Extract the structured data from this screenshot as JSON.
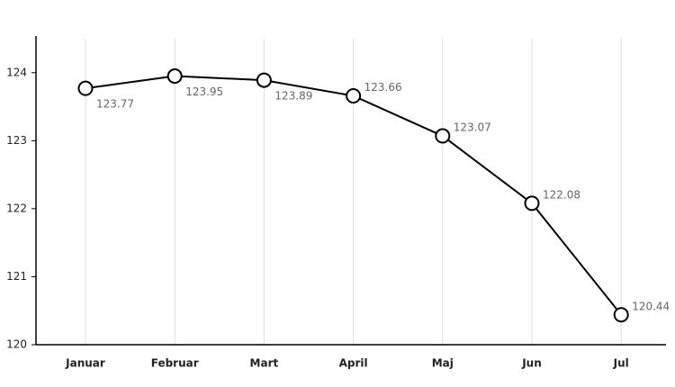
{
  "chart_data": {
    "type": "line",
    "categories": [
      "Januar",
      "Februar",
      "Mart",
      "April",
      "Maj",
      "Jun",
      "Jul"
    ],
    "values": [
      123.77,
      123.95,
      123.89,
      123.66,
      123.07,
      122.08,
      120.44
    ],
    "color": "#000000",
    "ylim": [
      120,
      124.5
    ],
    "yticks": [
      120,
      121,
      122,
      123,
      124
    ],
    "grid": true
  }
}
